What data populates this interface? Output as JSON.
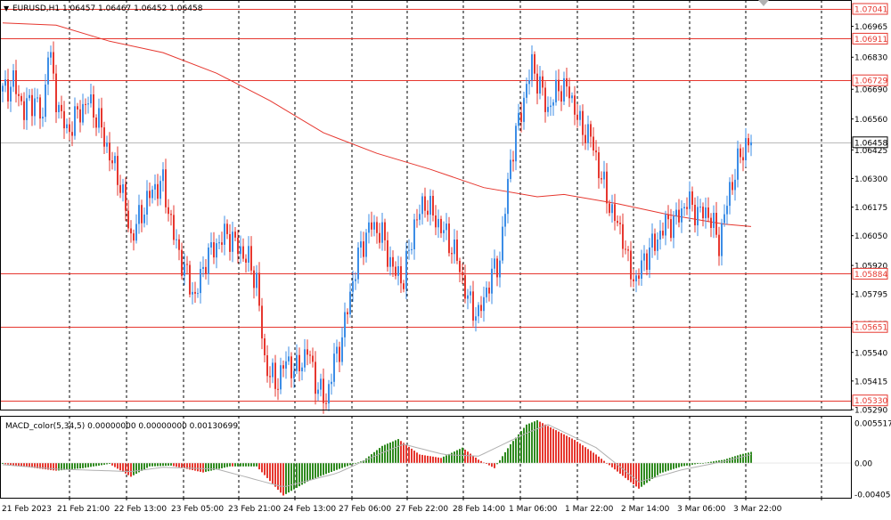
{
  "window": {
    "header": "EURUSD,H1  1.06457 1.06467 1.06452 1.06458",
    "collapse_glyph": "▼"
  },
  "colors": {
    "bull": "#3c8de6",
    "bear": "#e6372f",
    "ma": "#e6372f",
    "hline": "#e6372f",
    "current_line": "#b9b9b9",
    "macd_pos": "#2f8a1f",
    "macd_neg": "#e6372f",
    "signal": "#b0b0b0",
    "grid": "#000000",
    "text": "#000000"
  },
  "price_axis": {
    "ticks": [
      "1.06965",
      "1.06830",
      "1.06690",
      "1.06560",
      "1.06425",
      "1.06300",
      "1.06175",
      "1.06050",
      "1.05920",
      "1.05795",
      "1.05665",
      "1.05540",
      "1.05415",
      "1.05290"
    ],
    "levels": [
      "1.07041",
      "1.06911",
      "1.06729",
      "1.05884",
      "1.05651",
      "1.05330"
    ],
    "current": "1.06458"
  },
  "time_axis": [
    "21 Feb 2023",
    "21 Feb 21:00",
    "22 Feb 13:00",
    "23 Feb 05:00",
    "23 Feb 21:00",
    "24 Feb 13:00",
    "27 Feb 06:00",
    "27 Feb 22:00",
    "28 Feb 14:00",
    "1 Mar 06:00",
    "1 Mar 22:00",
    "2 Mar 14:00",
    "3 Mar 06:00",
    "3 Mar 22:00"
  ],
  "macd": {
    "label": "MACD_color(5,34,5) 0.00000000 0.00000000 0.00130699",
    "ticks": [
      "0.0055176",
      "0.00",
      "-0.0040558"
    ]
  },
  "chart_data": [
    {
      "type": "candlestick",
      "symbol": "EURUSD",
      "timeframe": "H1",
      "ohlc_header": {
        "open": 1.06457,
        "high": 1.06467,
        "low": 1.06452,
        "close": 1.06458
      },
      "ylim": [
        1.0529,
        1.0708
      ],
      "x_labels": [
        "21 Feb 2023",
        "21 Feb 21:00",
        "22 Feb 13:00",
        "23 Feb 05:00",
        "23 Feb 21:00",
        "24 Feb 13:00",
        "27 Feb 06:00",
        "27 Feb 22:00",
        "28 Feb 14:00",
        "1 Mar 06:00",
        "1 Mar 22:00",
        "2 Mar 14:00",
        "3 Mar 06:00",
        "3 Mar 22:00"
      ],
      "horizontal_levels": [
        1.07041,
        1.06911,
        1.06729,
        1.05884,
        1.05651,
        1.0533
      ],
      "current_price": 1.06458,
      "close_path": [
        [
          0,
          1.0668
        ],
        [
          4,
          1.0672
        ],
        [
          8,
          1.066
        ],
        [
          12,
          1.0665
        ],
        [
          15,
          1.0655
        ],
        [
          17,
          1.0688
        ],
        [
          20,
          1.0665
        ],
        [
          24,
          1.065
        ],
        [
          28,
          1.0658
        ],
        [
          32,
          1.0664
        ],
        [
          36,
          1.0655
        ],
        [
          40,
          1.064
        ],
        [
          44,
          1.0628
        ],
        [
          48,
          1.0604
        ],
        [
          52,
          1.0615
        ],
        [
          56,
          1.0625
        ],
        [
          60,
          1.0628
        ],
        [
          64,
          1.0605
        ],
        [
          68,
          1.059
        ],
        [
          72,
          1.0578
        ],
        [
          76,
          1.0595
        ],
        [
          80,
          1.0601
        ],
        [
          84,
          1.0606
        ],
        [
          88,
          1.06
        ],
        [
          92,
          1.0594
        ],
        [
          95,
          1.0585
        ],
        [
          98,
          1.055
        ],
        [
          102,
          1.054
        ],
        [
          106,
          1.055
        ],
        [
          110,
          1.0546
        ],
        [
          114,
          1.0555
        ],
        [
          118,
          1.0538
        ],
        [
          121,
          1.0533
        ],
        [
          124,
          1.055
        ],
        [
          127,
          1.056
        ],
        [
          130,
          1.058
        ],
        [
          134,
          1.06
        ],
        [
          138,
          1.061
        ],
        [
          142,
          1.0605
        ],
        [
          146,
          1.059
        ],
        [
          150,
          1.0586
        ],
        [
          154,
          1.061
        ],
        [
          158,
          1.062
        ],
        [
          162,
          1.0612
        ],
        [
          166,
          1.0605
        ],
        [
          170,
          1.0595
        ],
        [
          174,
          1.0577
        ],
        [
          178,
          1.057
        ],
        [
          182,
          1.0585
        ],
        [
          186,
          1.0595
        ],
        [
          190,
          1.0638
        ],
        [
          194,
          1.066
        ],
        [
          198,
          1.068
        ],
        [
          201,
          1.067
        ],
        [
          204,
          1.066
        ],
        [
          208,
          1.067
        ],
        [
          212,
          1.0668
        ],
        [
          216,
          1.0653
        ],
        [
          220,
          1.0648
        ],
        [
          224,
          1.063
        ],
        [
          228,
          1.0615
        ],
        [
          232,
          1.0605
        ],
        [
          234,
          1.0592
        ],
        [
          237,
          1.0585
        ],
        [
          240,
          1.0595
        ],
        [
          244,
          1.0602
        ],
        [
          248,
          1.061
        ],
        [
          252,
          1.0612
        ],
        [
          256,
          1.062
        ],
        [
          260,
          1.0615
        ],
        [
          264,
          1.0615
        ],
        [
          268,
          1.0602
        ],
        [
          272,
          1.0625
        ],
        [
          276,
          1.064
        ],
        [
          278,
          1.0645
        ],
        [
          280,
          1.06458
        ]
      ],
      "moving_average": {
        "color": "red",
        "points": [
          [
            0,
            1.0698
          ],
          [
            20,
            1.0697
          ],
          [
            40,
            1.069
          ],
          [
            60,
            1.0685
          ],
          [
            80,
            1.0676
          ],
          [
            100,
            1.0664
          ],
          [
            120,
            1.065
          ],
          [
            140,
            1.0641
          ],
          [
            160,
            1.0634
          ],
          [
            180,
            1.0626
          ],
          [
            200,
            1.0622
          ],
          [
            210,
            1.0623
          ],
          [
            230,
            1.0619
          ],
          [
            250,
            1.0614
          ],
          [
            270,
            1.061
          ],
          [
            280,
            1.0609
          ]
        ]
      }
    },
    {
      "type": "histogram",
      "name": "MACD_color(5,34,5)",
      "values_header": [
        0.0,
        0.0,
        0.00130699
      ],
      "ylim": [
        -0.0040558,
        0.0055176
      ],
      "macd_path": [
        [
          0,
          -0.0001
        ],
        [
          10,
          -0.0005
        ],
        [
          20,
          -0.0009
        ],
        [
          30,
          -0.0006
        ],
        [
          40,
          -0.0001
        ],
        [
          48,
          -0.0016
        ],
        [
          55,
          -0.0004
        ],
        [
          63,
          -0.0003
        ],
        [
          75,
          -0.0011
        ],
        [
          85,
          -0.0004
        ],
        [
          95,
          -0.0004
        ],
        [
          105,
          -0.0038
        ],
        [
          115,
          -0.002
        ],
        [
          125,
          -0.0008
        ],
        [
          135,
          0.0003
        ],
        [
          142,
          0.002
        ],
        [
          148,
          0.0028
        ],
        [
          156,
          0.001
        ],
        [
          164,
          0.0006
        ],
        [
          172,
          0.0018
        ],
        [
          178,
          0.0004
        ],
        [
          184,
          -0.0006
        ],
        [
          190,
          0.0022
        ],
        [
          196,
          0.0045
        ],
        [
          200,
          0.005
        ],
        [
          206,
          0.004
        ],
        [
          214,
          0.0027
        ],
        [
          222,
          0.001
        ],
        [
          230,
          -0.001
        ],
        [
          238,
          -0.003
        ],
        [
          246,
          -0.0012
        ],
        [
          254,
          -0.0004
        ],
        [
          262,
          0.0
        ],
        [
          270,
          0.0004
        ],
        [
          276,
          0.001
        ],
        [
          280,
          0.0013
        ]
      ],
      "signal_path": [
        [
          0,
          -0.0002
        ],
        [
          20,
          -0.0007
        ],
        [
          48,
          -0.001
        ],
        [
          60,
          -0.0005
        ],
        [
          80,
          -0.0007
        ],
        [
          105,
          -0.0028
        ],
        [
          125,
          -0.0012
        ],
        [
          142,
          0.0012
        ],
        [
          150,
          0.0022
        ],
        [
          165,
          0.001
        ],
        [
          178,
          0.0008
        ],
        [
          196,
          0.0035
        ],
        [
          204,
          0.0045
        ],
        [
          222,
          0.0018
        ],
        [
          238,
          -0.0022
        ],
        [
          254,
          -0.0008
        ],
        [
          270,
          0.0002
        ],
        [
          280,
          0.001
        ]
      ]
    }
  ]
}
